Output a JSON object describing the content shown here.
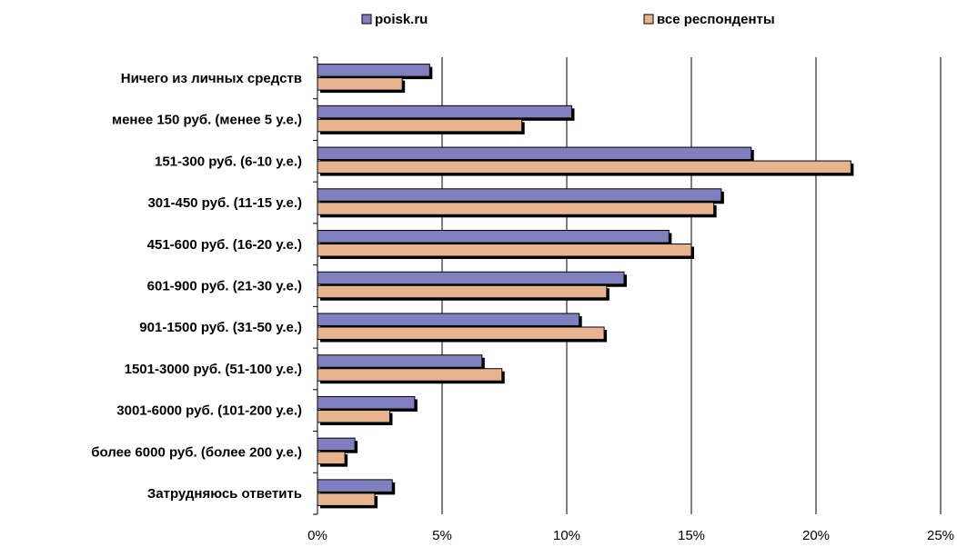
{
  "chart_data": {
    "type": "bar",
    "orientation": "horizontal",
    "categories": [
      "Ничего из личных средств",
      "менее 150 руб. (менее 5 у.е.)",
      "151-300 руб. (6-10 у.е.)",
      "301-450 руб. (11-15 у.е.)",
      "451-600 руб. (16-20 у.е.)",
      "601-900 руб. (21-30 у.е.)",
      "901-1500 руб. (31-50 у.е.)",
      "1501-3000 руб. (51-100 у.е.)",
      "3001-6000 руб. (101-200 у.е.)",
      "более 6000 руб. (более 200 у.е.)",
      "Затрудняюсь ответить"
    ],
    "series": [
      {
        "name": "poisk.ru",
        "color": "#8080c0",
        "values": [
          4.5,
          10.2,
          17.4,
          16.2,
          14.1,
          12.3,
          10.5,
          6.6,
          3.9,
          1.5,
          3.0
        ]
      },
      {
        "name": "все респонденты",
        "color": "#e8b490",
        "values": [
          3.4,
          8.2,
          21.4,
          15.9,
          15.0,
          11.6,
          11.5,
          7.4,
          2.9,
          1.1,
          2.3
        ]
      }
    ],
    "xlim": [
      0,
      25
    ],
    "xticks": [
      "0%",
      "5%",
      "10%",
      "15%",
      "20%",
      "25%"
    ],
    "grid": true,
    "legend": "top"
  }
}
